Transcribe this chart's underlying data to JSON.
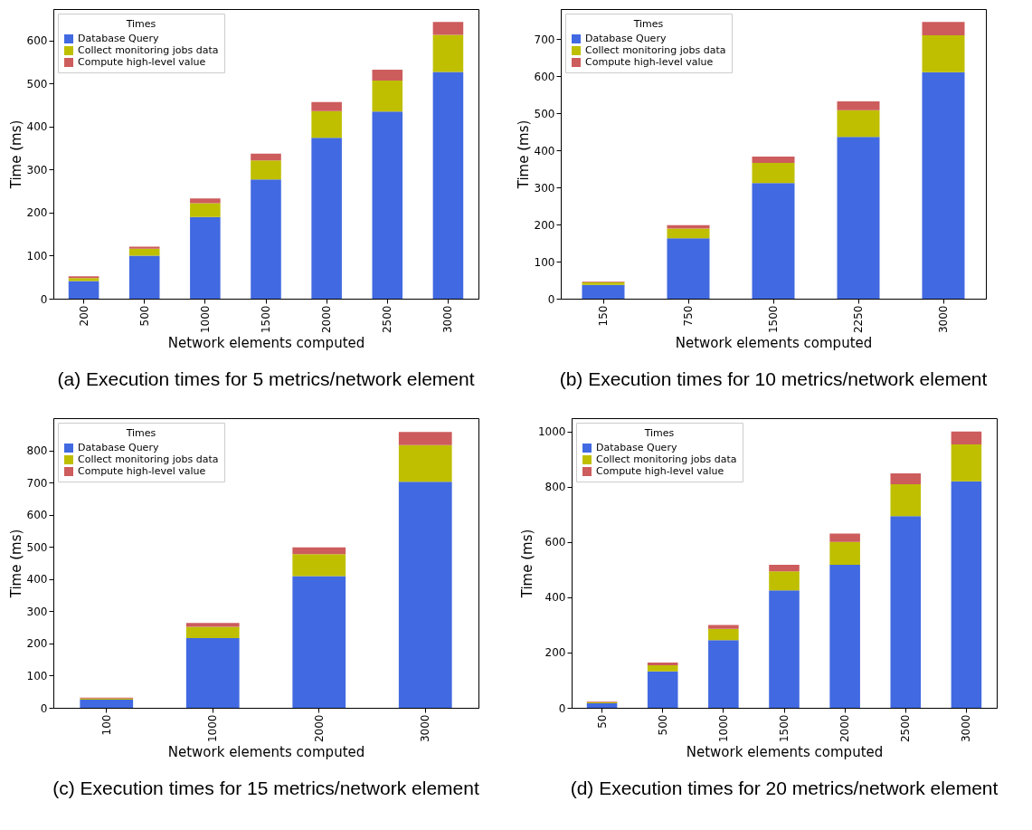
{
  "chart_data": [
    {
      "type": "bar",
      "title": "(a)  Execution times for 5 metrics/network element",
      "xlabel": "Network elements computed",
      "ylabel": "Time (ms)",
      "legend_title": "Times",
      "legend": "top left",
      "stacked": true,
      "categories": [
        "200",
        "500",
        "1000",
        "1500",
        "2000",
        "2500",
        "3000"
      ],
      "ylim": [
        0,
        673
      ],
      "yticks": [
        0,
        100,
        200,
        300,
        400,
        500,
        600
      ],
      "series": [
        {
          "name": "Database Query",
          "color": "#4169e1",
          "values": [
            41,
            100,
            190,
            277,
            374,
            435,
            527
          ]
        },
        {
          "name": "Collect monitoring jobs data",
          "color": "#bfbf00",
          "values": [
            7,
            16,
            32,
            44,
            62,
            72,
            86
          ]
        },
        {
          "name": "Compute high-level value",
          "color": "#cd5c5c",
          "values": [
            4,
            5,
            11,
            16,
            21,
            25,
            30
          ]
        }
      ]
    },
    {
      "type": "bar",
      "title": "(b)  Execution times for 10 metrics/network element",
      "xlabel": "Network elements computed",
      "ylabel": "Time (ms)",
      "legend_title": "Times",
      "legend": "top left",
      "stacked": true,
      "categories": [
        "150",
        "750",
        "1500",
        "2250",
        "3000"
      ],
      "ylim": [
        0,
        781
      ],
      "yticks": [
        0,
        100,
        200,
        300,
        400,
        500,
        600,
        700
      ],
      "series": [
        {
          "name": "Database Query",
          "color": "#4169e1",
          "values": [
            37,
            163,
            312,
            436,
            611
          ]
        },
        {
          "name": "Collect monitoring jobs data",
          "color": "#bfbf00",
          "values": [
            7,
            26,
            54,
            72,
            99
          ]
        },
        {
          "name": "Compute high-level value",
          "color": "#cd5c5c",
          "values": [
            2,
            9,
            17,
            24,
            36
          ]
        }
      ]
    },
    {
      "type": "bar",
      "title": "(c)  Execution times for 15 metrics/network element",
      "xlabel": "Network elements computed",
      "ylabel": "Time (ms)",
      "legend_title": "Times",
      "legend": "top left",
      "stacked": true,
      "categories": [
        "100",
        "1000",
        "2000",
        "3000"
      ],
      "ylim": [
        0,
        901
      ],
      "yticks": [
        0,
        100,
        200,
        300,
        400,
        500,
        600,
        700,
        800
      ],
      "series": [
        {
          "name": "Database Query",
          "color": "#4169e1",
          "values": [
            25,
            217,
            410,
            703
          ]
        },
        {
          "name": "Collect monitoring jobs data",
          "color": "#bfbf00",
          "values": [
            4,
            35,
            68,
            114
          ]
        },
        {
          "name": "Compute high-level value",
          "color": "#cd5c5c",
          "values": [
            3,
            12,
            21,
            41
          ]
        }
      ]
    },
    {
      "type": "bar",
      "title": "(d)  Execution times for 20 metrics/network element",
      "xlabel": "Network elements computed",
      "ylabel": "Time (ms)",
      "legend_title": "Times",
      "legend": "top left",
      "stacked": true,
      "categories": [
        "50",
        "500",
        "1000",
        "1500",
        "2000",
        "2500",
        "3000"
      ],
      "ylim": [
        0,
        1049
      ],
      "yticks": [
        0,
        200,
        400,
        600,
        800,
        1000
      ],
      "series": [
        {
          "name": "Database Query",
          "color": "#4169e1",
          "values": [
            16,
            132,
            245,
            425,
            518,
            694,
            820
          ]
        },
        {
          "name": "Collect monitoring jobs data",
          "color": "#bfbf00",
          "values": [
            4,
            22,
            41,
            69,
            83,
            116,
            134
          ]
        },
        {
          "name": "Compute high-level value",
          "color": "#cd5c5c",
          "values": [
            2,
            10,
            14,
            24,
            30,
            39,
            47
          ]
        }
      ]
    }
  ]
}
